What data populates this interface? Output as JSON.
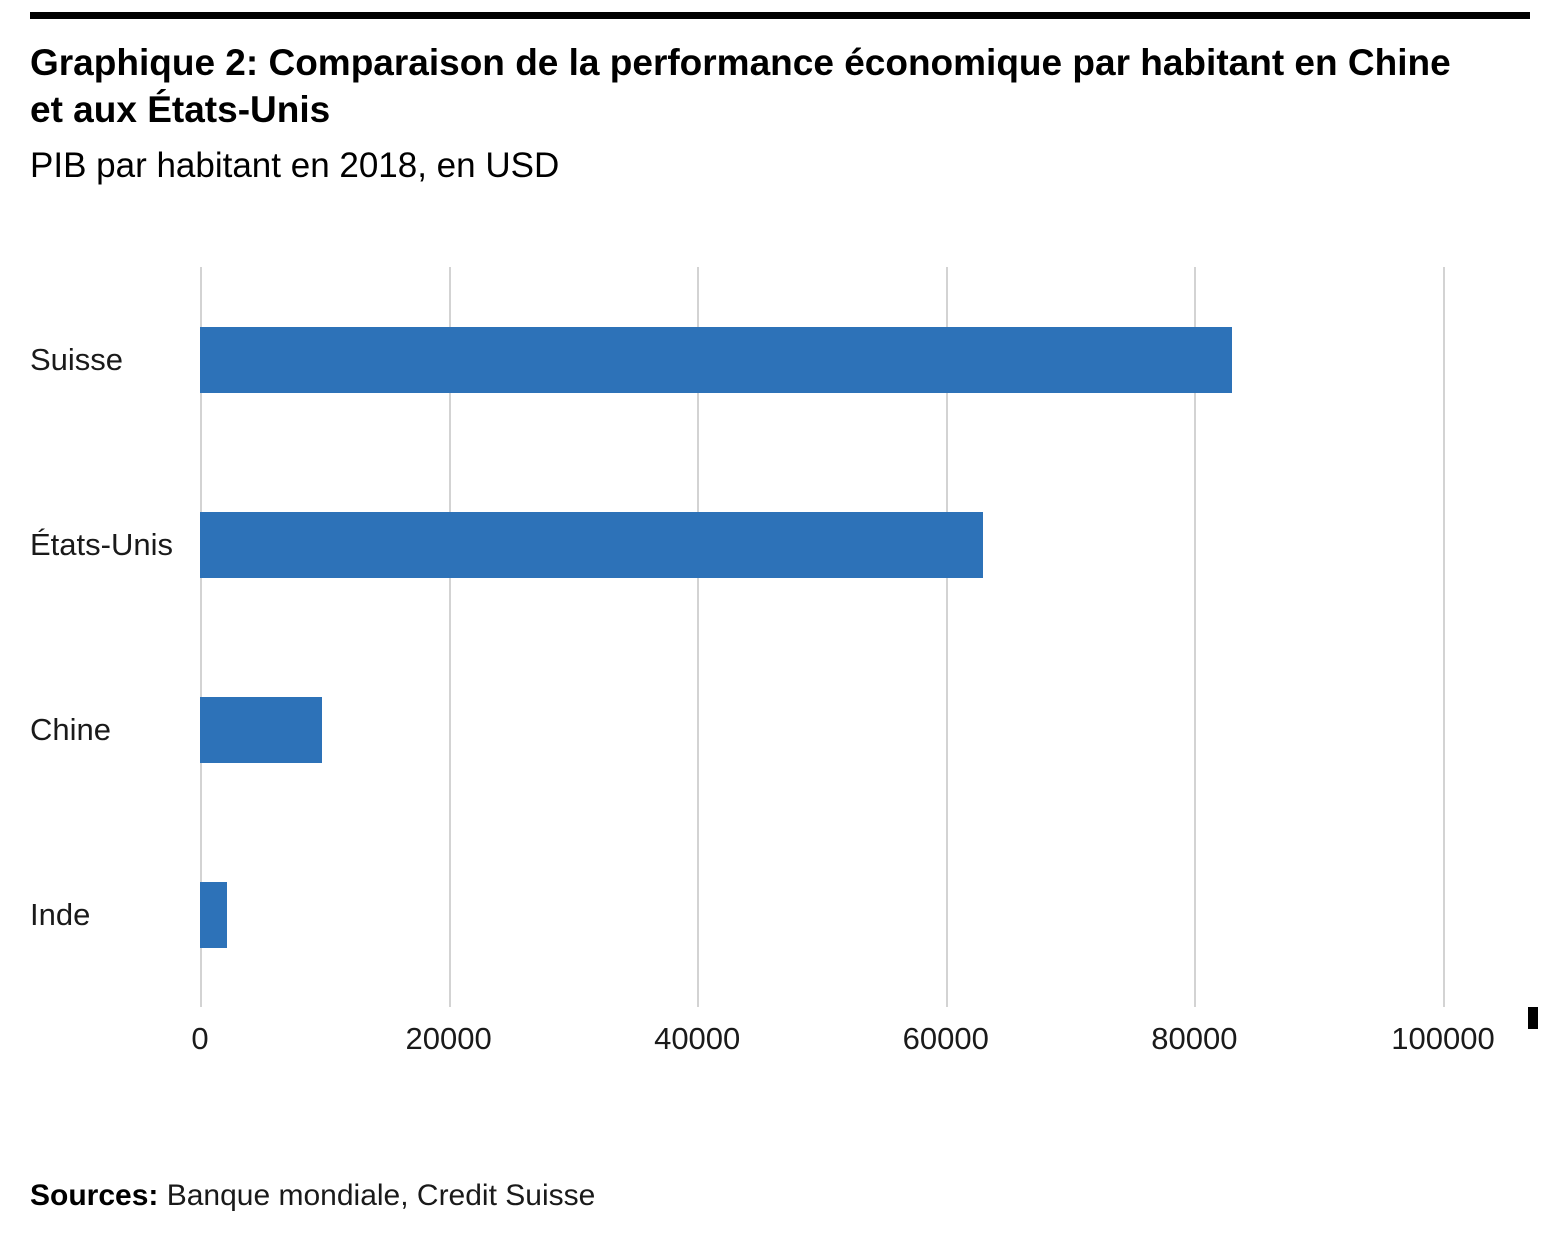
{
  "header": {
    "title": "Graphique 2: Comparaison de la performance économique par habitant en Chine et aux États-Unis",
    "subtitle": "PIB par habitant en 2018, en USD"
  },
  "chart_data": {
    "type": "bar",
    "orientation": "horizontal",
    "categories": [
      "Suisse",
      "États-Unis",
      "Chine",
      "Inde"
    ],
    "values": [
      83000,
      63000,
      9800,
      2200
    ],
    "title": "Graphique 2: Comparaison de la performance économique par habitant en Chine et aux États-Unis",
    "subtitle": "PIB par habitant en 2018, en USD",
    "xlabel": "",
    "ylabel": "",
    "xlim": [
      0,
      107000
    ],
    "xticks": [
      0,
      20000,
      40000,
      60000,
      80000,
      100000
    ],
    "grid": true,
    "legend": false,
    "bar_color": "#2d72b8",
    "gridline_color": "#d3d3d3"
  },
  "footer": {
    "sources_label": "Sources:",
    "sources_text": " Banque mondiale, Credit Suisse"
  }
}
